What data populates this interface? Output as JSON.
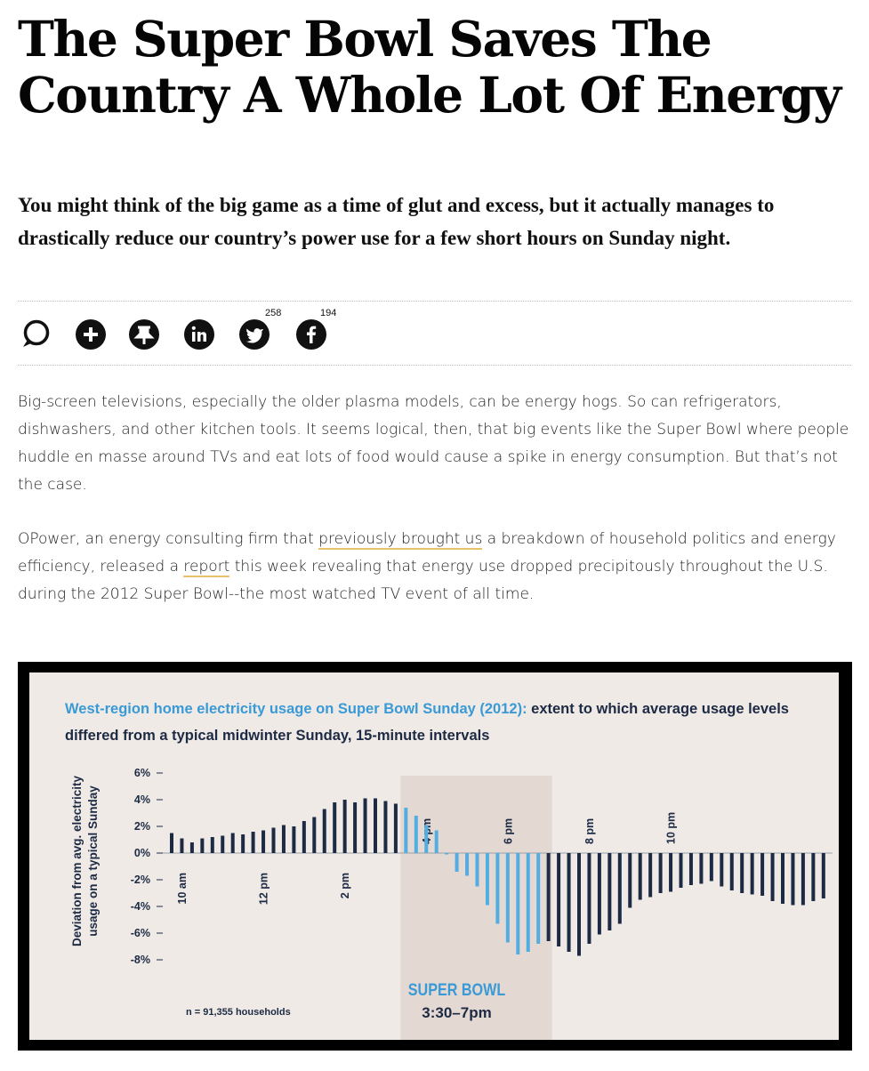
{
  "article": {
    "headline": "The Super Bowl Saves The Country A Whole Lot Of Energy",
    "dek": "You might think of the big game as a time of glut and excess, but it actually manages to drastically reduce our country’s power use for a few short hours on Sunday night.",
    "share": {
      "twitter_count": "258",
      "facebook_count": "194"
    },
    "paragraph1": "Big-screen televisions, especially the older plasma models, can be energy hogs. So can refrigerators, dishwashers, and other kitchen tools. It seems logical, then, that big events like the Super Bowl where people huddle en masse around TVs and eat lots of food would cause a spike in energy consumption. But that’s not the case.",
    "paragraph2": {
      "part1": "OPower, an energy consulting firm that ",
      "link1": "previously brought us",
      "part2": " a breakdown of household politics and energy efficiency, released a ",
      "link2": "report",
      "part3": " this week revealing that energy use dropped precipitously throughout the U.S. during the 2012 Super Bowl--the most watched TV event of all time."
    }
  },
  "chart_data": {
    "type": "bar",
    "title_highlight": "West-region home electricity usage on Super Bowl Sunday (2012):",
    "title_rest": " extent to which average usage levels differed from a typical midwinter Sunday, 15-minute intervals",
    "ylabel_line1": "Deviation from avg. electricity",
    "ylabel_line2": "usage on a typical Sunday",
    "yticks": [
      "6%",
      "4%",
      "2%",
      "0%",
      "-2%",
      "-4%",
      "-6%",
      "-8%"
    ],
    "ytick_values": [
      6,
      4,
      2,
      0,
      -2,
      -4,
      -6,
      -8
    ],
    "ylim": [
      -8,
      6
    ],
    "x_start_hour": 9.75,
    "interval_minutes": 15,
    "xtick_labels": [
      {
        "label": "10 am",
        "hour": 10,
        "side": "below"
      },
      {
        "label": "12 pm",
        "hour": 12,
        "side": "below"
      },
      {
        "label": "2 pm",
        "hour": 14,
        "side": "below"
      },
      {
        "label": "4 pm",
        "hour": 16,
        "side": "above"
      },
      {
        "label": "6 pm",
        "hour": 18,
        "side": "above"
      },
      {
        "label": "8 pm",
        "hour": 20,
        "side": "above"
      },
      {
        "label": "10 pm",
        "hour": 22,
        "side": "above"
      }
    ],
    "values": [
      1.5,
      1.1,
      0.8,
      1.1,
      1.2,
      1.3,
      1.5,
      1.4,
      1.6,
      1.7,
      1.9,
      2.1,
      2.0,
      2.4,
      2.7,
      3.3,
      3.8,
      4.0,
      3.8,
      4.1,
      4.1,
      3.9,
      3.7,
      3.4,
      2.8,
      2.1,
      1.7,
      -0.1,
      -1.4,
      -1.7,
      -2.5,
      -3.9,
      -5.3,
      -6.7,
      -7.6,
      -7.4,
      -6.8,
      -6.6,
      -7.0,
      -7.4,
      -7.7,
      -6.8,
      -6.1,
      -5.8,
      -5.3,
      -4.1,
      -3.5,
      -3.3,
      -3.0,
      -2.9,
      -2.6,
      -2.4,
      -2.3,
      -2.1,
      -2.5,
      -2.8,
      -3.0,
      -3.1,
      -3.2,
      -3.6,
      -3.8,
      -3.9,
      -3.9,
      -3.6,
      -3.4
    ],
    "highlight_range_hours": [
      15.5,
      19.0
    ],
    "highlight_color": "#52ade3",
    "normal_color": "#1d2a44",
    "shade_color": "#e3d8d2",
    "annotation_title": "SUPER BOWL",
    "annotation_time": "3:30–7pm",
    "footnote": "n = 91,355 households"
  }
}
